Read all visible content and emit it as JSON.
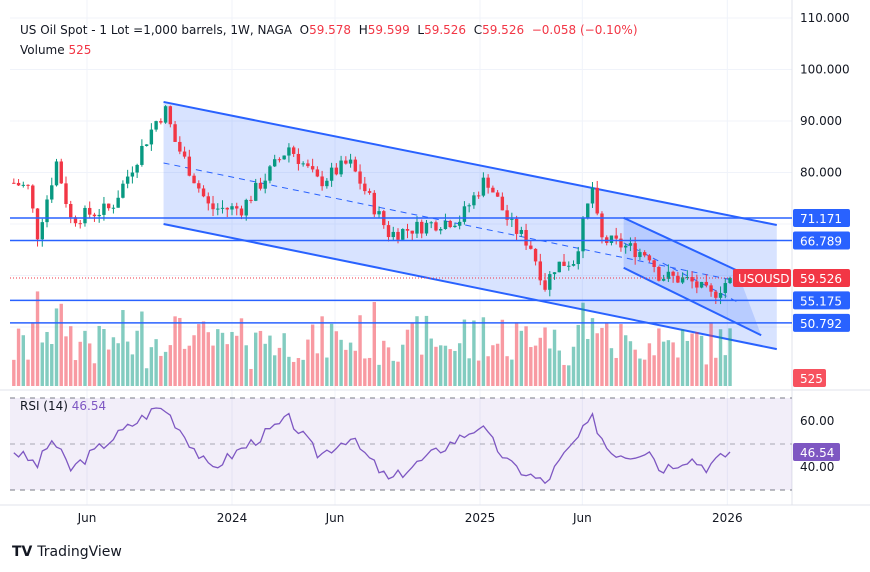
{
  "legend": {
    "symbol": "US Oil Spot - 1 Lot =1,000 barrels, 1W, NAGA",
    "o_label": "O",
    "open": "59.578",
    "h_label": "H",
    "high": "59.599",
    "l_label": "L",
    "low": "59.526",
    "c_label": "C",
    "close": "59.526",
    "change": "−0.058 (−0.10%)",
    "volume_label": "Volume",
    "volume": "525"
  },
  "rsi": {
    "label": "RSI (14)",
    "value": "46.54"
  },
  "brand": "TradingView",
  "colors": {
    "up": "#089981",
    "down": "#f23645",
    "drawing": "#2962ff",
    "rsi": "#7e57c2"
  },
  "chart_data": [
    {
      "type": "candlestick",
      "ylim": [
        45,
        112
      ],
      "y_ticks": [
        "110.000",
        "100.000",
        "90.000",
        "80.000"
      ],
      "x_ticks": [
        {
          "label": "Jun",
          "date": "2023-06-01"
        },
        {
          "label": "2024",
          "date": "2024-01-01"
        },
        {
          "label": "Jun",
          "date": "2024-06-01"
        },
        {
          "label": "2025",
          "date": "2025-01-01"
        },
        {
          "label": "Jun",
          "date": "2025-06-01"
        },
        {
          "label": "2026",
          "date": "2026-01-01"
        }
      ],
      "approx_closes": [
        [
          "2023-02-13",
          78
        ],
        [
          "2023-03-06",
          77
        ],
        [
          "2023-03-20",
          68
        ],
        [
          "2023-04-17",
          82
        ],
        [
          "2023-05-08",
          71
        ],
        [
          "2023-06-05",
          72
        ],
        [
          "2023-07-06",
          73
        ],
        [
          "2023-09-11",
          90
        ],
        [
          "2023-09-25",
          92
        ],
        [
          "2023-10-09",
          86
        ],
        [
          "2023-11-29",
          73
        ],
        [
          "2024-01-15",
          73
        ],
        [
          "2024-03-25",
          85
        ],
        [
          "2024-05-08",
          78
        ],
        [
          "2024-06-22",
          82
        ],
        [
          "2024-08-20",
          68
        ],
        [
          "2024-10-19",
          70
        ],
        [
          "2024-12-03",
          71
        ],
        [
          "2025-01-10",
          79
        ],
        [
          "2025-02-14",
          70
        ],
        [
          "2025-03-16",
          66
        ],
        [
          "2025-04-07",
          58
        ],
        [
          "2025-04-22",
          62
        ],
        [
          "2025-05-20",
          63
        ],
        [
          "2025-06-16",
          77
        ],
        [
          "2025-06-27",
          67
        ],
        [
          "2025-07-26",
          66
        ],
        [
          "2025-09-08",
          64
        ],
        [
          "2025-09-23",
          60
        ],
        [
          "2025-11-06",
          59
        ],
        [
          "2025-12-08",
          56
        ],
        [
          "2026-01-05",
          59.5
        ]
      ],
      "last_price": {
        "symbol": "USOUSD",
        "value": "59.526"
      },
      "horizontal_levels": [
        "71.171",
        "66.789",
        "55.175",
        "50.792"
      ],
      "channels": [
        {
          "upper": [
            [
              "2023-09-22",
              93.7
            ],
            [
              "2026-03-15",
              69.8
            ]
          ],
          "lower": [
            [
              "2023-09-22",
              70
            ],
            [
              "2026-03-15",
              45.7
            ]
          ]
        },
        {
          "upper": [
            [
              "2025-08-01",
              71.2
            ],
            [
              "2026-01-15",
              61
            ]
          ],
          "lower": [
            [
              "2025-08-01",
              61.5
            ],
            [
              "2026-02-20",
              48.4
            ]
          ]
        }
      ],
      "volume": {
        "last": "525"
      }
    },
    {
      "type": "line",
      "name": "RSI (14)",
      "ylim": [
        25,
        75
      ],
      "y_ticks": [
        "60.00",
        "40.00"
      ],
      "bands": [
        70,
        30
      ],
      "approx_values": [
        [
          "2023-02-13",
          47
        ],
        [
          "2023-03-20",
          41
        ],
        [
          "2023-04-10",
          52
        ],
        [
          "2023-05-08",
          39
        ],
        [
          "2023-07-06",
          52
        ],
        [
          "2023-09-11",
          65.6
        ],
        [
          "2023-09-25",
          65
        ],
        [
          "2023-11-29",
          39
        ],
        [
          "2024-03-25",
          61
        ],
        [
          "2024-05-08",
          45
        ],
        [
          "2024-06-22",
          53
        ],
        [
          "2024-08-20",
          34
        ],
        [
          "2024-10-19",
          45
        ],
        [
          "2025-01-01",
          58
        ],
        [
          "2025-02-14",
          41
        ],
        [
          "2025-04-07",
          33
        ],
        [
          "2025-04-30",
          43
        ],
        [
          "2025-06-16",
          61
        ],
        [
          "2025-07-10",
          47
        ],
        [
          "2025-08-10",
          45
        ],
        [
          "2025-09-08",
          48
        ],
        [
          "2025-09-23",
          39
        ],
        [
          "2025-11-06",
          44
        ],
        [
          "2025-12-01",
          40
        ],
        [
          "2026-01-05",
          46.5
        ]
      ]
    }
  ]
}
